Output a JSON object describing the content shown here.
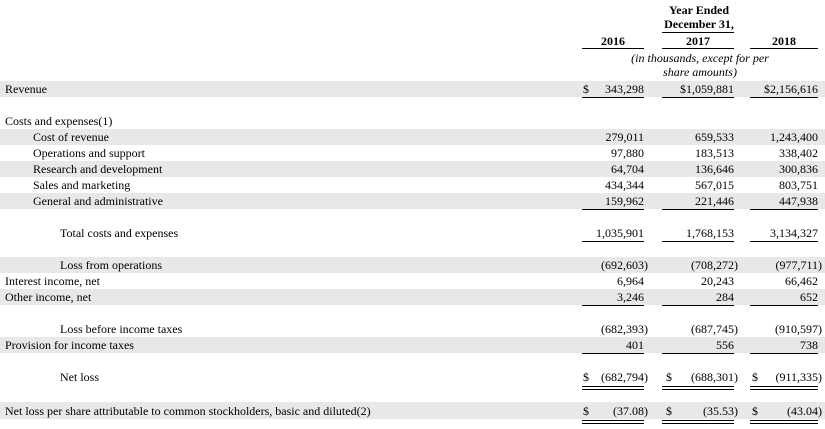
{
  "header": {
    "year_ended": "Year Ended",
    "december": "December 31,",
    "years": [
      "2016",
      "2017",
      "2018"
    ],
    "units_line1": "(in thousands, except for per",
    "units_line2": "share amounts)"
  },
  "rows": {
    "revenue": {
      "label": "Revenue",
      "values": [
        "343,298",
        "$1,059,881",
        "$2,156,616"
      ],
      "currency_2016": "$"
    },
    "costs_header": {
      "label": "Costs and expenses(1)"
    },
    "cost_of_revenue": {
      "label": "Cost of revenue",
      "values": [
        "279,011",
        "659,533",
        "1,243,400"
      ]
    },
    "operations_support": {
      "label": "Operations and support",
      "values": [
        "97,880",
        "183,513",
        "338,402"
      ]
    },
    "research_development": {
      "label": "Research and development",
      "values": [
        "64,704",
        "136,646",
        "300,836"
      ]
    },
    "sales_marketing": {
      "label": "Sales and marketing",
      "values": [
        "434,344",
        "567,015",
        "803,751"
      ]
    },
    "general_admin": {
      "label": "General and administrative",
      "values": [
        "159,962",
        "221,446",
        "447,938"
      ]
    },
    "total_costs": {
      "label": "Total costs and expenses",
      "values": [
        "1,035,901",
        "1,768,153",
        "3,134,327"
      ]
    },
    "loss_operations": {
      "label": "Loss from operations",
      "values": [
        "(692,603)",
        "(708,272)",
        "(977,711)"
      ]
    },
    "interest_income": {
      "label": "Interest income, net",
      "values": [
        "6,964",
        "20,243",
        "66,462"
      ]
    },
    "other_income": {
      "label": "Other income, net",
      "values": [
        "3,246",
        "284",
        "652"
      ]
    },
    "loss_before_tax": {
      "label": "Loss before income taxes",
      "values": [
        "(682,393)",
        "(687,745)",
        "(910,597)"
      ]
    },
    "provision_tax": {
      "label": "Provision for income taxes",
      "values": [
        "401",
        "556",
        "738"
      ]
    },
    "net_loss": {
      "label": "Net loss",
      "values": [
        "(682,794)",
        "(688,301)",
        "(911,335)"
      ],
      "currency": "$"
    },
    "eps": {
      "label": "Net loss per share attributable to common stockholders, basic and diluted(2)",
      "values": [
        "(37.08)",
        "(35.53)",
        "(43.04)"
      ],
      "currency": "$"
    }
  }
}
